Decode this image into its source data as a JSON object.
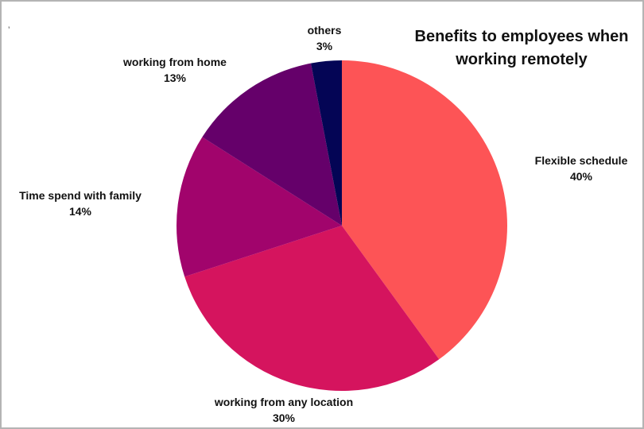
{
  "stray_mark": "’",
  "chart_data": {
    "type": "pie",
    "title": "Benefits to employees when working remotely",
    "start_angle_deg": 0,
    "direction": "clockwise",
    "slices": [
      {
        "label": "Flexible schedule",
        "value": 40,
        "value_label": "40%",
        "color": "#fd5456"
      },
      {
        "label": "working from any location",
        "value": 30,
        "value_label": "30%",
        "color": "#d5145e"
      },
      {
        "label": "Time spend with family",
        "value": 14,
        "value_label": "14%",
        "color": "#a1046c"
      },
      {
        "label": "working from home",
        "value": 13,
        "value_label": "13%",
        "color": "#65006a"
      },
      {
        "label": "others",
        "value": 3,
        "value_label": "3%",
        "color": "#040555"
      }
    ]
  }
}
